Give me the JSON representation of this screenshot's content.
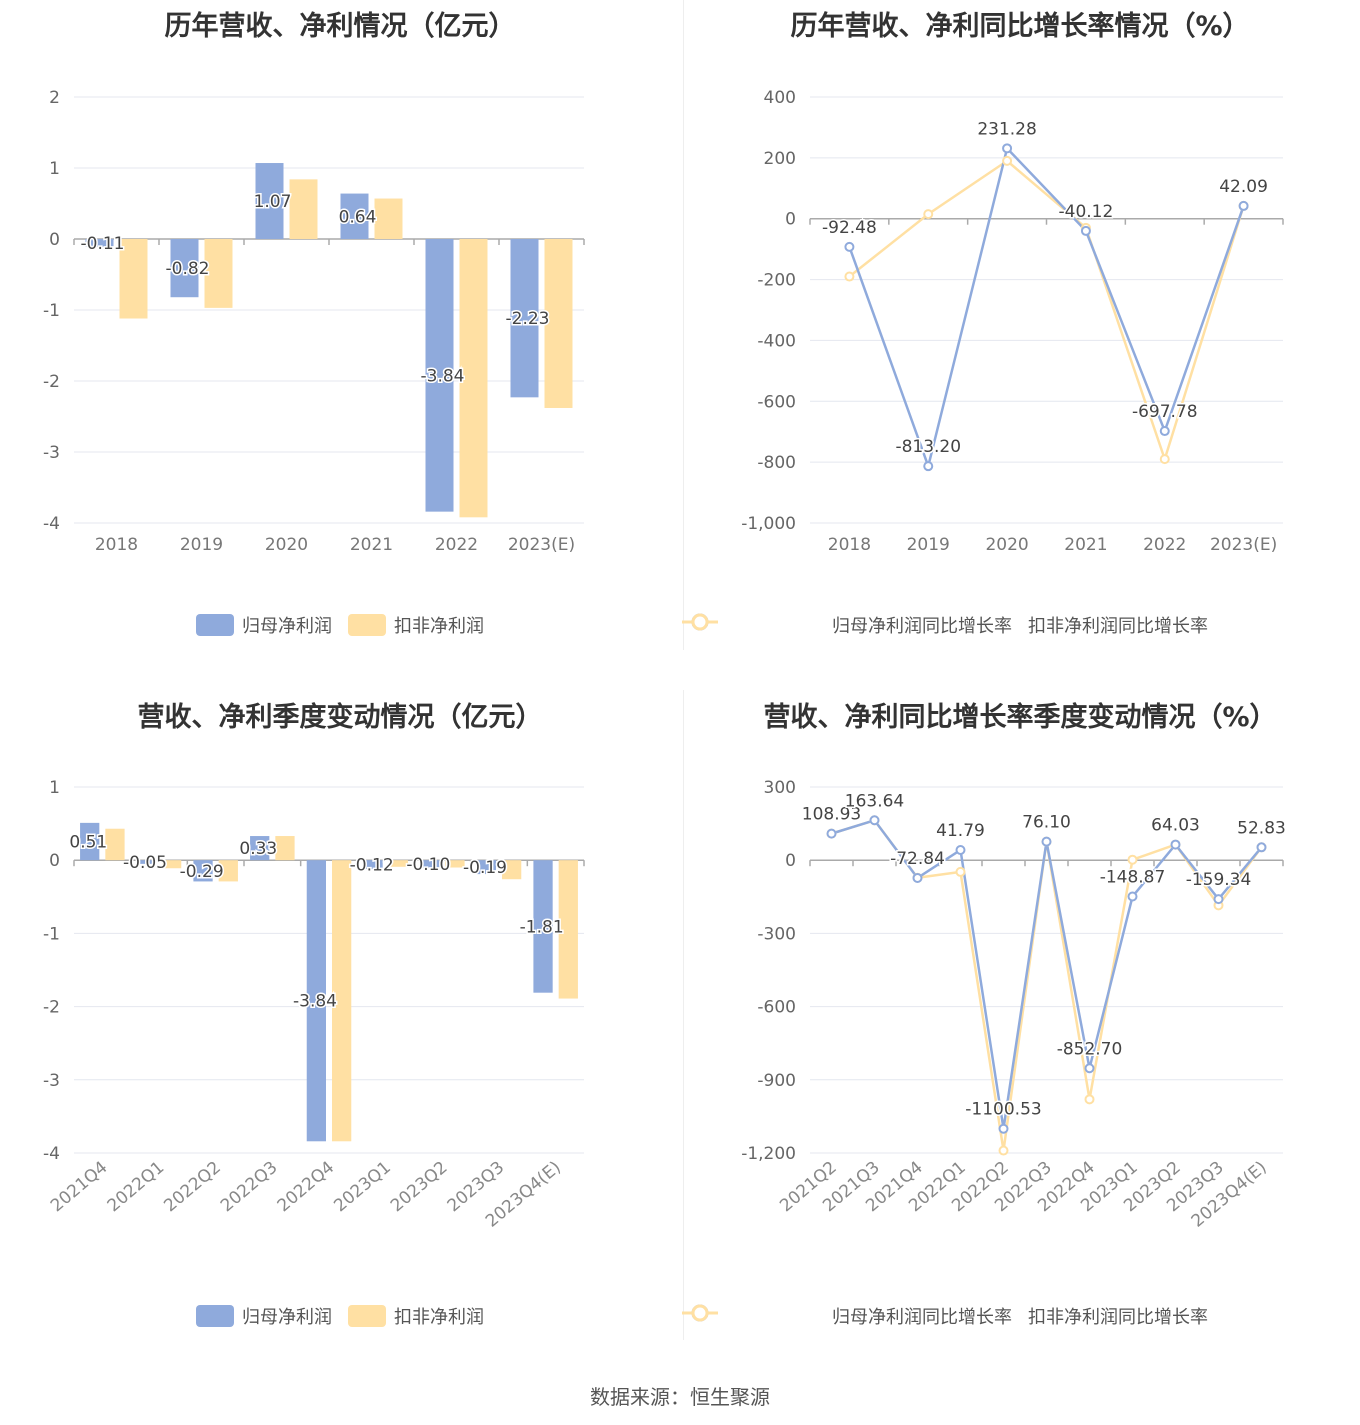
{
  "colors": {
    "series1": "#8faadc",
    "series2": "#ffd999",
    "series2_line": "#ffe0a3",
    "axis": "#aaaaaa",
    "grid": "#e4e7ef",
    "text": "#444444",
    "title": "#333333"
  },
  "chart_data": [
    {
      "type": "bar",
      "title": "历年营收、净利情况（亿元）",
      "categories": [
        "2018",
        "2019",
        "2020",
        "2021",
        "2022",
        "2023(E)"
      ],
      "yticks": [
        "2",
        "1",
        "0",
        "-1",
        "-2",
        "-3",
        "-4"
      ],
      "ylim": [
        -4,
        2
      ],
      "series": [
        {
          "name": "归母净利润",
          "values": [
            -0.11,
            -0.82,
            1.07,
            0.64,
            -3.84,
            -2.23
          ],
          "labels": [
            "-0.11",
            "-0.82",
            "1.07",
            "0.64",
            "-3.84",
            "-2.23"
          ]
        },
        {
          "name": "扣非净利润",
          "values": [
            -1.12,
            -0.97,
            0.84,
            0.57,
            -3.92,
            -2.38
          ]
        }
      ],
      "legend": "bottom-center"
    },
    {
      "type": "line",
      "title": "历年营收、净利同比增长率情况（%）",
      "categories": [
        "2018",
        "2019",
        "2020",
        "2021",
        "2022",
        "2023(E)"
      ],
      "yticks": [
        "400",
        "200",
        "0",
        "-200",
        "-400",
        "-600",
        "-800",
        "-1,000"
      ],
      "ylim": [
        -1000,
        400
      ],
      "series": [
        {
          "name": "归母净利润同比增长率",
          "values": [
            -92.48,
            -813.2,
            231.28,
            -40.12,
            -697.78,
            42.09
          ],
          "labels": [
            "-92.48",
            "-813.20",
            "231.28",
            "-40.12",
            "-697.78",
            "42.09"
          ]
        },
        {
          "name": "扣非净利润同比增长率",
          "values": [
            -190,
            15,
            190,
            -30,
            -790,
            42
          ]
        }
      ],
      "legend": "bottom-center"
    },
    {
      "type": "bar",
      "title": "营收、净利季度变动情况（亿元）",
      "categories": [
        "2021Q4",
        "2022Q1",
        "2022Q2",
        "2022Q3",
        "2022Q4",
        "2023Q1",
        "2023Q2",
        "2023Q3",
        "2023Q4(E)"
      ],
      "yticks": [
        "1",
        "0",
        "-1",
        "-2",
        "-3",
        "-4"
      ],
      "ylim": [
        -4,
        1
      ],
      "series": [
        {
          "name": "归母净利润",
          "values": [
            0.51,
            -0.05,
            -0.29,
            0.33,
            -3.84,
            -0.12,
            -0.1,
            -0.19,
            -1.81
          ],
          "labels": [
            "0.51",
            "-0.05",
            "-0.29",
            "0.33",
            "-3.84",
            "-0.12",
            "-0.10",
            "-0.19",
            "-1.81"
          ]
        },
        {
          "name": "扣非净利润",
          "values": [
            0.43,
            -0.11,
            -0.29,
            0.33,
            -3.84,
            -0.09,
            -0.1,
            -0.26,
            -1.89
          ]
        }
      ],
      "legend": "bottom-center"
    },
    {
      "type": "line",
      "title": "营收、净利同比增长率季度变动情况（%）",
      "categories": [
        "2021Q2",
        "2021Q3",
        "2021Q4",
        "2022Q1",
        "2022Q2",
        "2022Q3",
        "2022Q4",
        "2023Q1",
        "2023Q2",
        "2023Q3",
        "2023Q4(E)"
      ],
      "yticks": [
        "300",
        "0",
        "-300",
        "-600",
        "-900",
        "-1,200"
      ],
      "ylim": [
        -1200,
        300
      ],
      "series": [
        {
          "name": "归母净利润同比增长率",
          "values": [
            108.93,
            163.64,
            -72.84,
            41.79,
            -1100.53,
            76.1,
            -852.7,
            -148.87,
            64.03,
            -159.34,
            52.83
          ],
          "labels": [
            "108.93",
            "163.64",
            "-72.84",
            "41.79",
            "-1100.53",
            "76.10",
            "-852.70",
            "-148.87",
            "64.03",
            "-159.34",
            "52.83"
          ]
        },
        {
          "name": "扣非净利润同比增长率",
          "values": [
            108.93,
            163.64,
            -72,
            -48,
            -1190,
            76.1,
            -980,
            2,
            64.03,
            -185,
            52.83
          ]
        }
      ],
      "legend": "bottom-center"
    }
  ],
  "footer": {
    "source": "数据来源：恒生聚源"
  }
}
